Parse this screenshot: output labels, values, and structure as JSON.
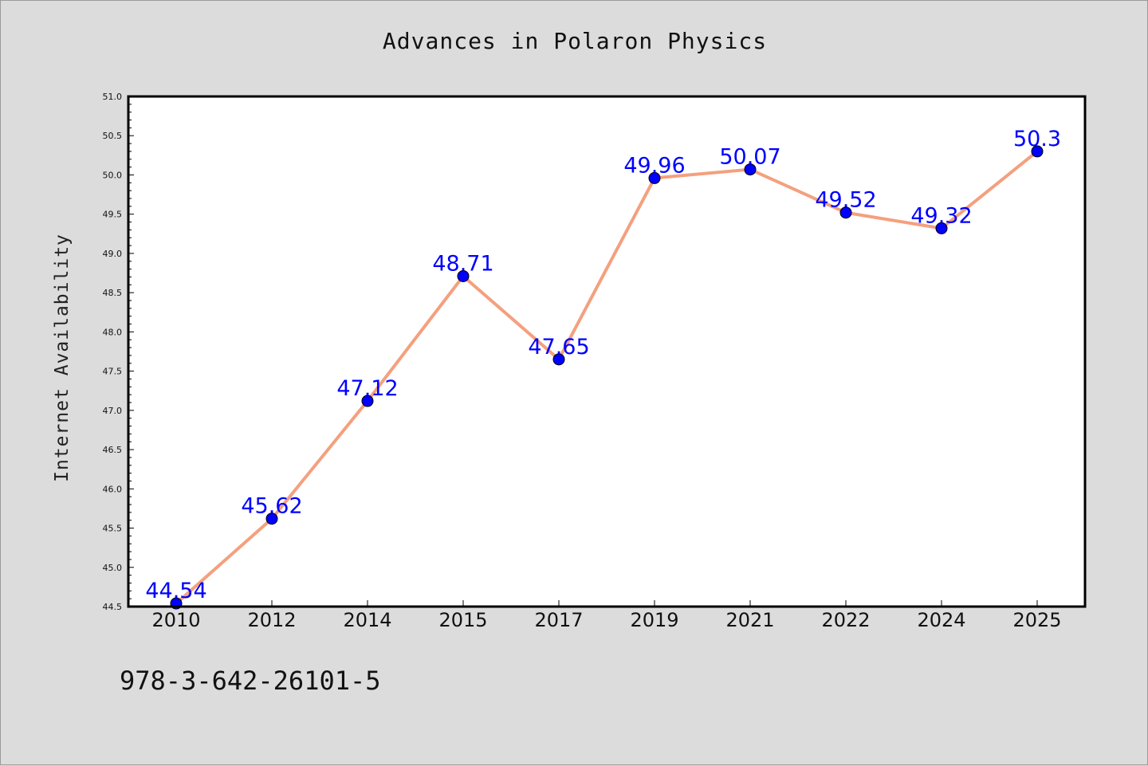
{
  "chart_data": {
    "type": "line",
    "title": "Advances in Polaron Physics",
    "xlabel": "",
    "ylabel": "Internet Availability",
    "categories": [
      "2010",
      "2012",
      "2014",
      "2015",
      "2017",
      "2019",
      "2021",
      "2022",
      "2024",
      "2025"
    ],
    "series": [
      {
        "values": [
          44.54,
          45.62,
          47.12,
          48.71,
          47.65,
          49.96,
          50.07,
          49.52,
          49.32,
          50.3
        ],
        "data_labels": [
          "44.54",
          "45.62",
          "47.12",
          "48.71",
          "47.65",
          "49.96",
          "50.07",
          "49.52",
          "49.32",
          "50.3"
        ],
        "line_color": "#f4a07e",
        "marker_color": "#0000ff"
      }
    ],
    "ylim": [
      44.5,
      51.0
    ],
    "y_ticks": [
      "44.5",
      "45.0",
      "45.5",
      "46.0",
      "46.5",
      "47.0",
      "47.5",
      "48.0",
      "48.5",
      "49.0",
      "49.5",
      "50.0",
      "50.5",
      "51.0"
    ],
    "grid": false
  },
  "footer": {
    "isbn": "978-3-642-26101-5"
  },
  "colors": {
    "background": "#dcdcdc",
    "plot_background": "#ffffff"
  }
}
